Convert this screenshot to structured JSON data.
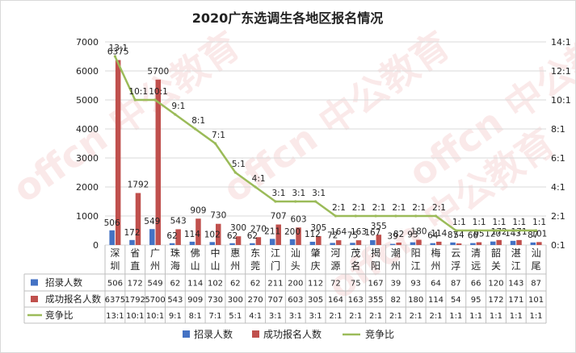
{
  "chart_data": {
    "type": "bar",
    "title": "2020广东选调生各地区报名情况",
    "categories": [
      "深圳",
      "省直",
      "广州",
      "珠海",
      "佛山",
      "中山",
      "惠州",
      "东莞",
      "江门",
      "汕头",
      "肇庆",
      "河源",
      "茂名",
      "揭阳",
      "潮州",
      "阳江",
      "梅州",
      "云浮",
      "清远",
      "韶关",
      "湛江",
      "汕尾"
    ],
    "series": [
      {
        "name": "招录人数",
        "color": "#4472c4",
        "axis": "left",
        "values": [
          506,
          172,
          549,
          62,
          114,
          102,
          62,
          62,
          211,
          200,
          112,
          72,
          75,
          167,
          39,
          93,
          64,
          87,
          66,
          120,
          143,
          87
        ]
      },
      {
        "name": "成功报名人数",
        "color": "#c0504d",
        "axis": "left",
        "values": [
          6375,
          1792,
          5700,
          543,
          909,
          730,
          300,
          270,
          707,
          603,
          305,
          164,
          163,
          355,
          82,
          180,
          114,
          54,
          95,
          172,
          171,
          101
        ]
      },
      {
        "name": "竞争比",
        "color": "#9bbb59",
        "type": "line",
        "axis": "right",
        "values": [
          13,
          10,
          10,
          9,
          8,
          7,
          5,
          4,
          3,
          3,
          3,
          2,
          2,
          2,
          2,
          2,
          2,
          1,
          1,
          1,
          1,
          1
        ],
        "labels": [
          "13:1",
          "10:1",
          "10:1",
          "9:1",
          "8:1",
          "7:1",
          "5:1",
          "4:1",
          "3:1",
          "3:1",
          "3:1",
          "2:1",
          "2:1",
          "2:1",
          "2:1",
          "2:1",
          "2:1",
          "1:1",
          "1:1",
          "1:1",
          "1:1",
          "1:1"
        ]
      }
    ],
    "left_axis": {
      "min": 0,
      "max": 7000,
      "step": 1000,
      "ticks": [
        "0",
        "1000",
        "2000",
        "3000",
        "4000",
        "5000",
        "6000",
        "7000"
      ]
    },
    "right_axis": {
      "min": 0,
      "max": 14,
      "step": 2,
      "ticks": [
        "0:1",
        "2:1",
        "4:1",
        "6:1",
        "8:1",
        "10:1",
        "12:1",
        "14:1"
      ]
    },
    "grid": true,
    "legend": "bottom",
    "data_table": true
  },
  "watermark": "offcn 中公教育"
}
